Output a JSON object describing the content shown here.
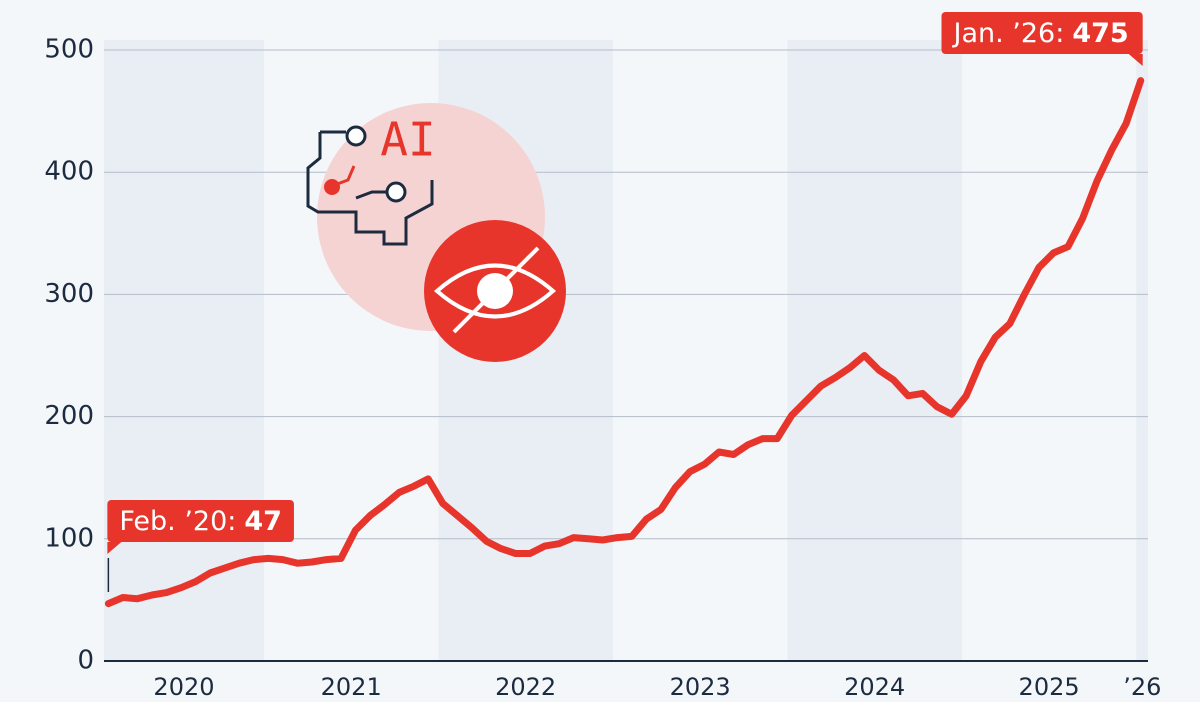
{
  "chart_data": {
    "type": "line",
    "categories": [
      "2020",
      null,
      null,
      null,
      null,
      null,
      null,
      null,
      null,
      null,
      null,
      "2021",
      null,
      null,
      null,
      null,
      null,
      null,
      null,
      null,
      null,
      null,
      null,
      "2022",
      null,
      null,
      null,
      null,
      null,
      null,
      null,
      null,
      null,
      null,
      null,
      "2023",
      null,
      null,
      null,
      null,
      null,
      null,
      null,
      null,
      null,
      null,
      null,
      "2024",
      null,
      null,
      null,
      null,
      null,
      null,
      null,
      null,
      null,
      null,
      null,
      "2025",
      null,
      null,
      null,
      null,
      null,
      null,
      null,
      null,
      null,
      null,
      null,
      "’26"
    ],
    "values": [
      47,
      52,
      51,
      54,
      56,
      60,
      65,
      72,
      76,
      80,
      83,
      84,
      83,
      80,
      81,
      83,
      84,
      107,
      119,
      128,
      138,
      143,
      149,
      129,
      119,
      109,
      98,
      92,
      88,
      88,
      94,
      96,
      101,
      100,
      99,
      101,
      102,
      116,
      124,
      142,
      155,
      161,
      171,
      169,
      177,
      182,
      182,
      201,
      213,
      225,
      232,
      240,
      250,
      238,
      230,
      217,
      219,
      208,
      202,
      217,
      245,
      265,
      276,
      300,
      322,
      334,
      339,
      362,
      393,
      418,
      440,
      475
    ],
    "color": "#e8352b",
    "ylim": [
      0,
      500
    ],
    "yticks": [
      0,
      100,
      200,
      300,
      400,
      500
    ],
    "grid": true,
    "start_label": "Feb. ’20:",
    "end_label": "Jan. ’26:",
    "icon_text": "AI"
  }
}
